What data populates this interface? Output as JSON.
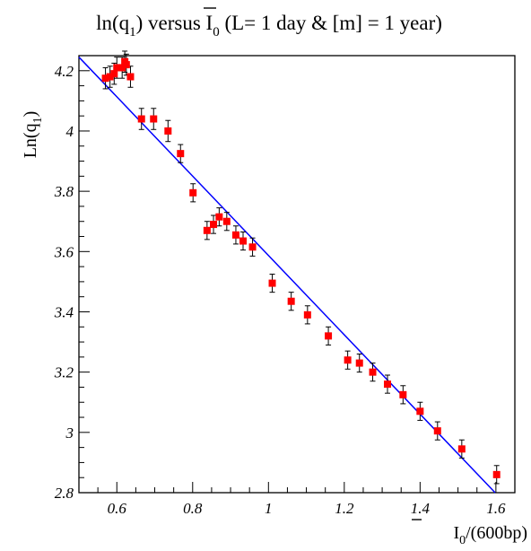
{
  "chart_data": {
    "type": "scatter",
    "title": {
      "part1": "ln(q",
      "sub1": "1",
      "part2": ") versus I",
      "sub2": "0",
      "part3": "  (L= 1 day & [m] = 1 year)"
    },
    "xlabel": {
      "main": "I",
      "sub": "0",
      "rest": "/(600bp)"
    },
    "ylabel": {
      "main": "Ln(q",
      "sub": "1",
      "rest": ")"
    },
    "xlim": [
      0.5,
      1.65
    ],
    "ylim": [
      2.8,
      4.25
    ],
    "x_ticks": [
      0.6,
      0.8,
      1.0,
      1.2,
      1.4,
      1.6
    ],
    "x_tick_labels": [
      "0.6",
      "0.8",
      "1",
      "1.2",
      "1.4",
      "1.6"
    ],
    "y_ticks": [
      2.8,
      3.0,
      3.2,
      3.4,
      3.6,
      3.8,
      4.0,
      4.2
    ],
    "y_tick_labels": [
      "2.8",
      "3",
      "3.2",
      "3.4",
      "3.6",
      "3.8",
      "4",
      "4.2"
    ],
    "grid": false,
    "colors": {
      "points": "#ff0000",
      "fit_line": "#0000ff",
      "error_bars": "#000000"
    },
    "points": [
      {
        "x": 0.57,
        "y": 4.175,
        "err": 0.035
      },
      {
        "x": 0.582,
        "y": 4.18,
        "err": 0.035
      },
      {
        "x": 0.593,
        "y": 4.19,
        "err": 0.035
      },
      {
        "x": 0.6,
        "y": 4.21,
        "err": 0.035
      },
      {
        "x": 0.614,
        "y": 4.21,
        "err": 0.035
      },
      {
        "x": 0.621,
        "y": 4.23,
        "err": 0.035
      },
      {
        "x": 0.625,
        "y": 4.22,
        "err": 0.035
      },
      {
        "x": 0.636,
        "y": 4.18,
        "err": 0.035
      },
      {
        "x": 0.665,
        "y": 4.04,
        "err": 0.035
      },
      {
        "x": 0.697,
        "y": 4.04,
        "err": 0.035
      },
      {
        "x": 0.735,
        "y": 4.0,
        "err": 0.035
      },
      {
        "x": 0.768,
        "y": 3.925,
        "err": 0.03
      },
      {
        "x": 0.801,
        "y": 3.795,
        "err": 0.03
      },
      {
        "x": 0.838,
        "y": 3.67,
        "err": 0.03
      },
      {
        "x": 0.855,
        "y": 3.69,
        "err": 0.03
      },
      {
        "x": 0.87,
        "y": 3.715,
        "err": 0.03
      },
      {
        "x": 0.89,
        "y": 3.7,
        "err": 0.03
      },
      {
        "x": 0.914,
        "y": 3.655,
        "err": 0.03
      },
      {
        "x": 0.933,
        "y": 3.635,
        "err": 0.03
      },
      {
        "x": 0.958,
        "y": 3.615,
        "err": 0.03
      },
      {
        "x": 1.01,
        "y": 3.495,
        "err": 0.03
      },
      {
        "x": 1.06,
        "y": 3.435,
        "err": 0.03
      },
      {
        "x": 1.103,
        "y": 3.39,
        "err": 0.03
      },
      {
        "x": 1.158,
        "y": 3.32,
        "err": 0.03
      },
      {
        "x": 1.209,
        "y": 3.24,
        "err": 0.03
      },
      {
        "x": 1.24,
        "y": 3.23,
        "err": 0.03
      },
      {
        "x": 1.275,
        "y": 3.2,
        "err": 0.03
      },
      {
        "x": 1.314,
        "y": 3.16,
        "err": 0.03
      },
      {
        "x": 1.355,
        "y": 3.125,
        "err": 0.03
      },
      {
        "x": 1.4,
        "y": 3.07,
        "err": 0.03
      },
      {
        "x": 1.446,
        "y": 3.005,
        "err": 0.03
      },
      {
        "x": 1.51,
        "y": 2.945,
        "err": 0.03
      },
      {
        "x": 1.602,
        "y": 2.86,
        "err": 0.03
      }
    ],
    "fit_line": {
      "x": [
        0.5,
        1.598
      ],
      "y": [
        4.245,
        2.8
      ]
    }
  }
}
